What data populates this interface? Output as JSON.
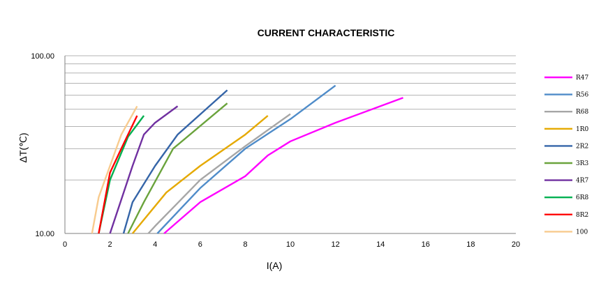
{
  "chart_data": {
    "type": "line",
    "title": "CURRENT CHARACTERISTIC",
    "xlabel": "I(A)",
    "ylabel": "ΔT(℃)",
    "xlim": [
      0,
      20
    ],
    "ylim": [
      10,
      100
    ],
    "yscale": "log",
    "x_ticks": [
      "0",
      "2",
      "4",
      "6",
      "8",
      "10",
      "12",
      "14",
      "16",
      "18",
      "20"
    ],
    "y_ticks": [
      "10.00",
      "100.00"
    ],
    "grid": true,
    "legend_position": "right",
    "series": [
      {
        "name": "R47",
        "color": "#ff00ff",
        "points": [
          [
            4.4,
            10
          ],
          [
            6,
            15
          ],
          [
            8,
            21
          ],
          [
            9,
            27.5
          ],
          [
            10,
            33
          ],
          [
            12,
            42
          ],
          [
            15,
            58
          ]
        ]
      },
      {
        "name": "R56",
        "color": "#4f8cc9",
        "points": [
          [
            4.1,
            10
          ],
          [
            6,
            18
          ],
          [
            8,
            30
          ],
          [
            10,
            44
          ],
          [
            12,
            68
          ]
        ]
      },
      {
        "name": "R68",
        "color": "#a6a6a6",
        "points": [
          [
            3.7,
            10
          ],
          [
            4,
            11
          ],
          [
            6,
            20
          ],
          [
            8,
            31
          ],
          [
            10,
            47
          ]
        ]
      },
      {
        "name": "1R0",
        "color": "#e5a900",
        "points": [
          [
            3,
            10
          ],
          [
            4.5,
            17
          ],
          [
            6,
            24
          ],
          [
            8,
            36
          ],
          [
            9,
            46
          ]
        ]
      },
      {
        "name": "2R2",
        "color": "#3565a8",
        "points": [
          [
            2.6,
            10
          ],
          [
            3,
            15
          ],
          [
            4,
            24
          ],
          [
            5,
            36
          ],
          [
            7.2,
            64
          ]
        ]
      },
      {
        "name": "3R3",
        "color": "#6aa33c",
        "points": [
          [
            2.8,
            10
          ],
          [
            3.5,
            15
          ],
          [
            4.8,
            30
          ],
          [
            7.2,
            54
          ]
        ]
      },
      {
        "name": "4R7",
        "color": "#7030a0",
        "points": [
          [
            2,
            10
          ],
          [
            3,
            24
          ],
          [
            3.5,
            36
          ],
          [
            4,
            42
          ],
          [
            5,
            52
          ]
        ]
      },
      {
        "name": "6R8",
        "color": "#00b050",
        "points": [
          [
            1.5,
            10
          ],
          [
            2,
            20
          ],
          [
            2.8,
            35
          ],
          [
            3.5,
            46
          ]
        ]
      },
      {
        "name": "8R2",
        "color": "#ff0000",
        "points": [
          [
            1.5,
            10
          ],
          [
            2,
            22
          ],
          [
            2.5,
            30
          ],
          [
            3.2,
            46
          ]
        ]
      },
      {
        "name": "100",
        "color": "#f8cb8e",
        "points": [
          [
            1.2,
            10
          ],
          [
            1.5,
            16
          ],
          [
            2.5,
            36
          ],
          [
            3.2,
            52
          ]
        ]
      }
    ]
  }
}
